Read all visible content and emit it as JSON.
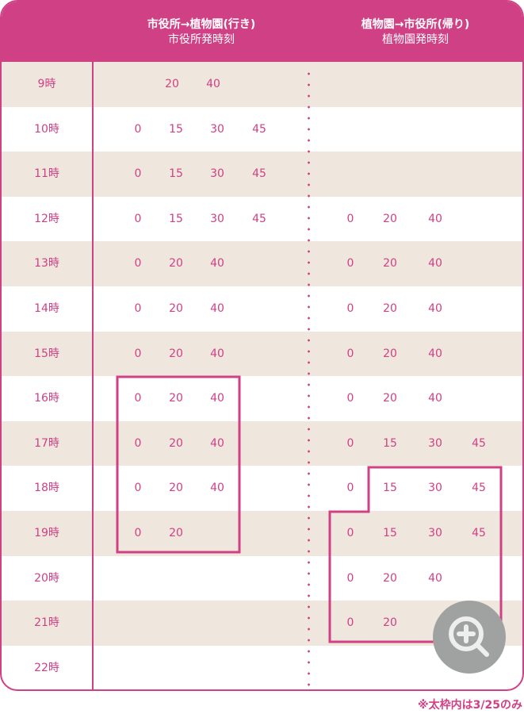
{
  "header": {
    "outbound": {
      "title": "市役所→植物園(行き)",
      "subtitle": "市役所発時刻"
    },
    "inbound": {
      "title": "植物園→市役所(帰り)",
      "subtitle": "植物園発時刻"
    }
  },
  "rows": [
    {
      "hour": "9時",
      "outbound": [
        null,
        "20",
        "40",
        null
      ],
      "inbound": [
        null,
        null,
        null,
        null
      ]
    },
    {
      "hour": "10時",
      "outbound": [
        "0",
        "15",
        "30",
        "45"
      ],
      "inbound": [
        null,
        null,
        null,
        null
      ]
    },
    {
      "hour": "11時",
      "outbound": [
        "0",
        "15",
        "30",
        "45"
      ],
      "inbound": [
        null,
        null,
        null,
        null
      ]
    },
    {
      "hour": "12時",
      "outbound": [
        "0",
        "15",
        "30",
        "45"
      ],
      "inbound": [
        "0",
        "20",
        "40",
        null
      ]
    },
    {
      "hour": "13時",
      "outbound": [
        "0",
        "20",
        "40",
        null
      ],
      "inbound": [
        "0",
        "20",
        "40",
        null
      ]
    },
    {
      "hour": "14時",
      "outbound": [
        "0",
        "20",
        "40",
        null
      ],
      "inbound": [
        "0",
        "20",
        "40",
        null
      ]
    },
    {
      "hour": "15時",
      "outbound": [
        "0",
        "20",
        "40",
        null
      ],
      "inbound": [
        "0",
        "20",
        "40",
        null
      ]
    },
    {
      "hour": "16時",
      "outbound": [
        "0",
        "20",
        "40",
        null
      ],
      "inbound": [
        "0",
        "20",
        "40",
        null
      ]
    },
    {
      "hour": "17時",
      "outbound": [
        "0",
        "20",
        "40",
        null
      ],
      "inbound": [
        "0",
        "15",
        "30",
        "45"
      ]
    },
    {
      "hour": "18時",
      "outbound": [
        "0",
        "20",
        "40",
        null
      ],
      "inbound": [
        "0",
        "15",
        "30",
        "45"
      ]
    },
    {
      "hour": "19時",
      "outbound": [
        "0",
        "20",
        null,
        null
      ],
      "inbound": [
        "0",
        "15",
        "30",
        "45"
      ]
    },
    {
      "hour": "20時",
      "outbound": [
        null,
        null,
        null,
        null
      ],
      "inbound": [
        "0",
        "20",
        "40",
        null
      ]
    },
    {
      "hour": "21時",
      "outbound": [
        null,
        null,
        null,
        null
      ],
      "inbound": [
        "0",
        "20",
        null,
        null
      ]
    },
    {
      "hour": "22時",
      "outbound": [
        null,
        null,
        null,
        null
      ],
      "inbound": [
        null,
        null,
        null,
        null
      ]
    }
  ],
  "note": "※太枠内は3/25のみ",
  "zoom_button": {
    "icon": "zoom-in-icon"
  },
  "colors": {
    "accent": "#d04085",
    "stripe": "#efe7de",
    "zoom_bg": "#a0a2a1"
  }
}
